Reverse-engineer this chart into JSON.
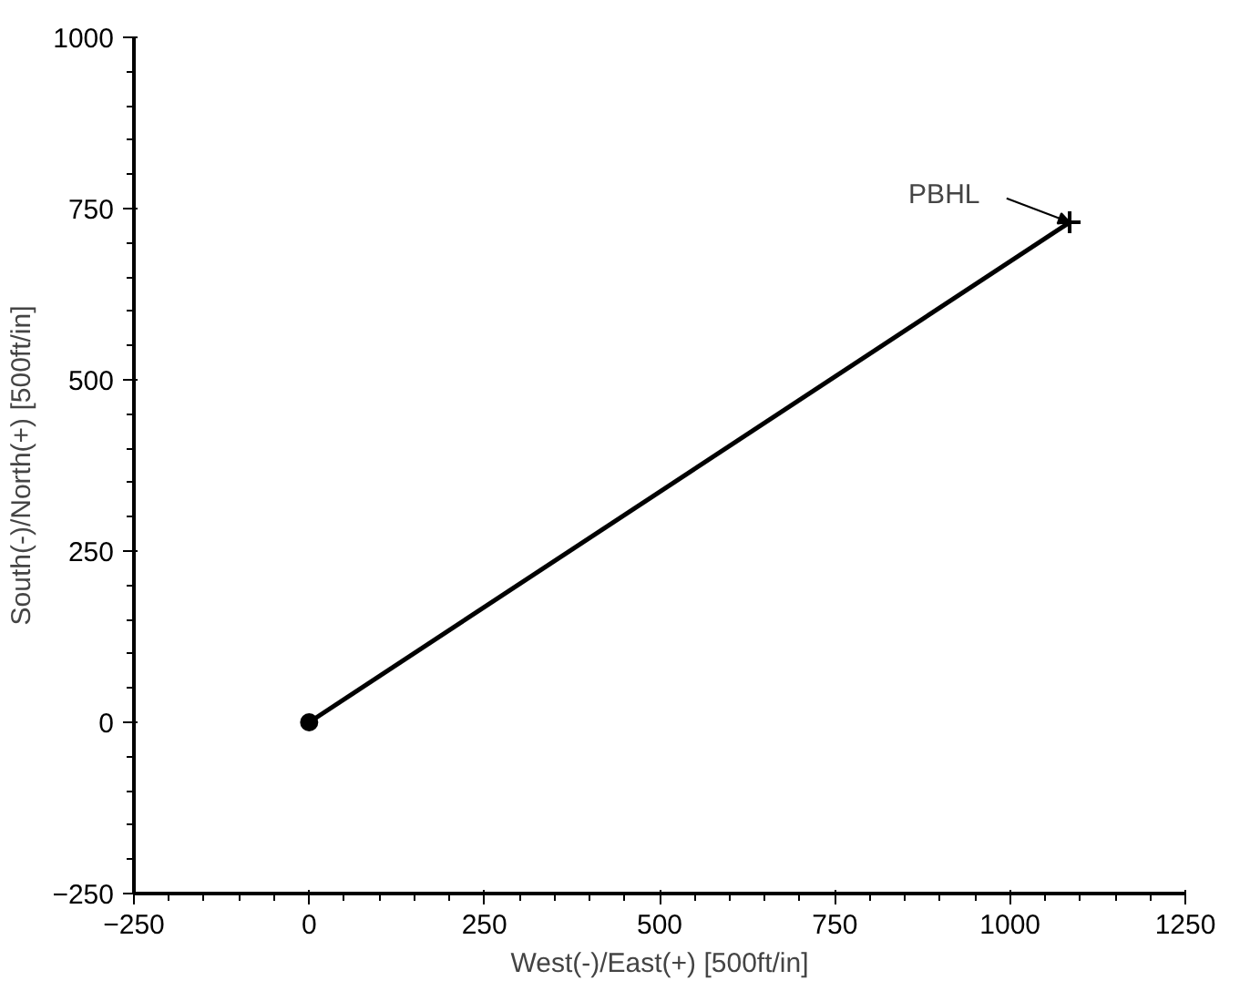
{
  "chart_data": {
    "type": "line",
    "xlabel": "West(-)/East(+) [500ft/in]",
    "ylabel": "South(-)/North(+) [500ft/in]",
    "x": [
      0,
      1085
    ],
    "series": [
      {
        "color": "#000000",
        "values": [
          0,
          730
        ]
      },
      {
        "type": "scatter",
        "marker": "circle",
        "color": "#000000",
        "x": [
          0
        ],
        "values": [
          0
        ]
      },
      {
        "type": "scatter",
        "marker": "cross",
        "color": "#000000",
        "x": [
          1085
        ],
        "values": [
          730
        ]
      }
    ],
    "xlim": [
      -250,
      1250
    ],
    "ylim": [
      -250,
      1000
    ],
    "xticks": [
      -250,
      0,
      250,
      500,
      750,
      1000,
      1250
    ],
    "yticks": [
      -250,
      0,
      250,
      500,
      750,
      1000
    ],
    "annotations": [
      {
        "text": "PBHL",
        "x": 1085,
        "y": 730
      }
    ],
    "grid": false
  }
}
